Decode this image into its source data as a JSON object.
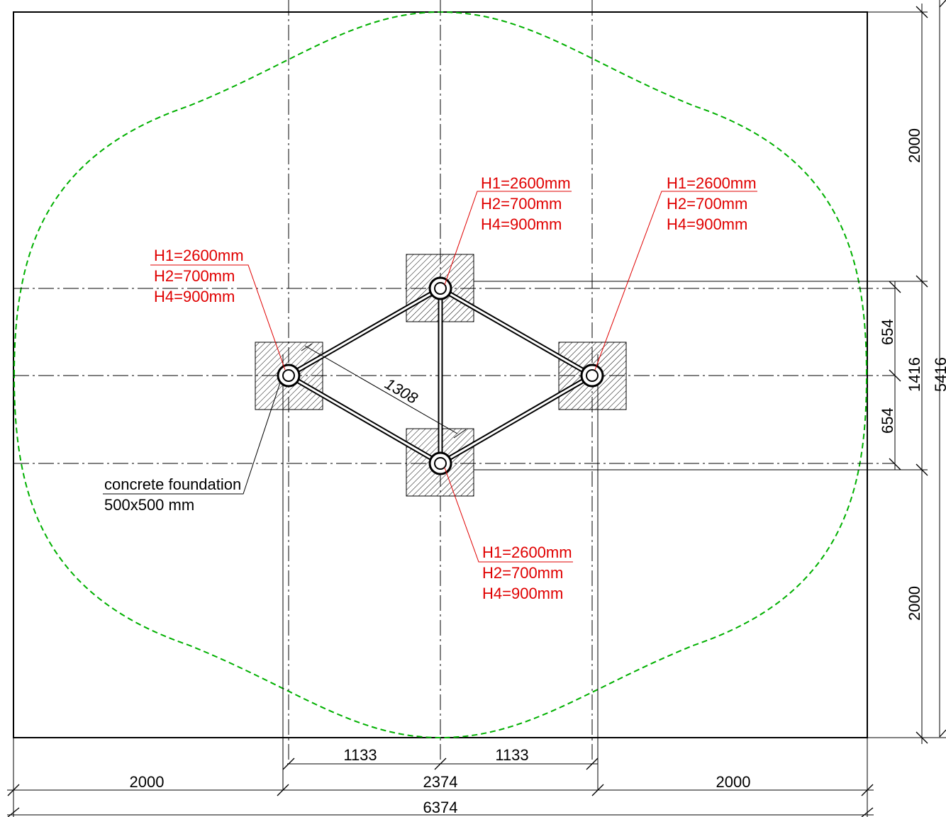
{
  "dimensions": {
    "top_half": "2000",
    "bottom_half": "2000",
    "total_height": "5416",
    "center_span": "1416",
    "upper_offset": "654",
    "lower_offset": "654",
    "bottom_left": "2000",
    "bottom_center": "2374",
    "bottom_right": "2000",
    "total_width": "6374",
    "inner_left": "1133",
    "inner_right": "1133",
    "diagonal": "1308"
  },
  "post_labels": {
    "top": [
      "H1=2600mm",
      "H2=700mm",
      "H4=900mm"
    ],
    "right": [
      "H1=2600mm",
      "H2=700mm",
      "H4=900mm"
    ],
    "left": [
      "H1=2600mm",
      "H2=700mm",
      "H4=900mm"
    ],
    "bottom": [
      "H1=2600mm",
      "H2=700mm",
      "H4=900mm"
    ]
  },
  "foundation_note": {
    "line1": "concrete foundation",
    "line2": "500x500 mm"
  },
  "colors": {
    "outline": "#000000",
    "safety_zone": "#00b000",
    "label_red": "#e00000"
  }
}
